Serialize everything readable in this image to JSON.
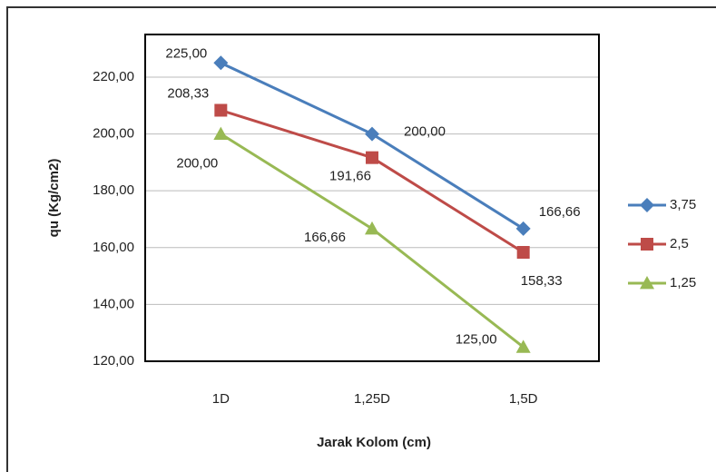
{
  "chart_data": {
    "type": "line",
    "x_label": "Jarak Kolom (cm)",
    "y_label": "qu (Kg/cm2)",
    "categories": [
      "1D",
      "1,25D",
      "1,5D"
    ],
    "series": [
      {
        "name": "3,75",
        "color": "#4a7ebb",
        "marker": "diamond",
        "values": [
          225,
          200,
          166.66
        ],
        "value_labels": [
          "225,00",
          "200,00",
          "166,66"
        ]
      },
      {
        "name": "2,5",
        "color": "#be4b48",
        "marker": "square",
        "values": [
          208.33,
          191.66,
          158.33
        ],
        "value_labels": [
          "208,33",
          "191,66",
          "158,33"
        ]
      },
      {
        "name": "1,25",
        "color": "#98b954",
        "marker": "triangle",
        "values": [
          200,
          166.66,
          125
        ],
        "value_labels": [
          "200,00",
          "166,66",
          "125,00"
        ]
      }
    ],
    "ylim": [
      120,
      235
    ],
    "yticks": [
      {
        "value": 120,
        "label": "120,00"
      },
      {
        "value": 140,
        "label": "140,00"
      },
      {
        "value": 160,
        "label": "160,00"
      },
      {
        "value": 180,
        "label": "180,00"
      },
      {
        "value": 200,
        "label": "200,00"
      },
      {
        "value": 220,
        "label": "220,00"
      }
    ],
    "grid": true,
    "legend": "right"
  }
}
